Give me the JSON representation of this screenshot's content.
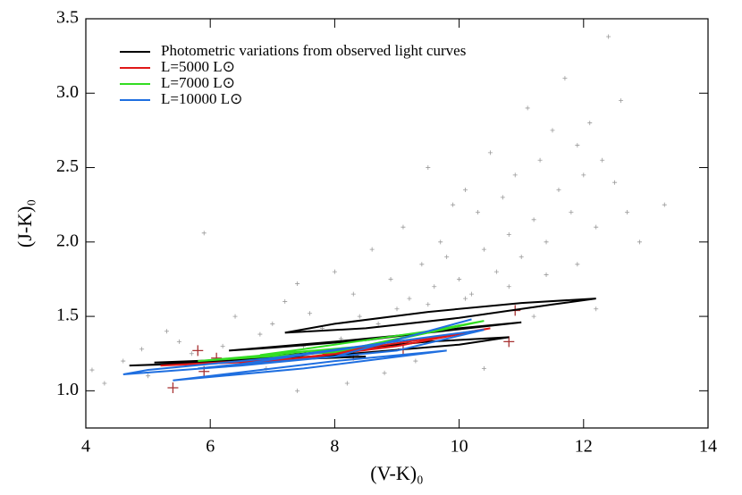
{
  "chart_data": {
    "type": "scatter-lines",
    "x_label": "(V-K)₀",
    "y_label": "(J-K)₀",
    "xlim": [
      4,
      14
    ],
    "xticks": [
      4,
      6,
      8,
      10,
      12,
      14
    ],
    "ylim": [
      0.75,
      3.5
    ],
    "yticks": [
      {
        "value": 1,
        "label": "1.0"
      },
      1.5,
      {
        "value": 2,
        "label": "2.0"
      },
      2.5,
      {
        "value": 3,
        "label": "3.0"
      },
      3.5
    ],
    "legend": "upper-left",
    "points": [
      {
        "color": "#999999",
        "x": [
          4.1,
          4.3,
          4.6,
          4.9,
          5.0,
          5.3,
          5.5,
          5.7,
          5.9,
          6.2,
          6.4,
          6.6,
          6.8,
          7.0,
          7.2,
          7.4,
          7.5,
          7.6,
          7.8,
          8.0,
          8.1,
          8.3,
          8.4,
          8.6,
          8.7,
          8.9,
          9.0,
          9.1,
          9.2,
          9.4,
          9.5,
          9.6,
          9.7,
          9.8,
          9.9,
          10.0,
          10.1,
          10.2,
          10.3,
          10.4,
          10.5,
          10.6,
          10.7,
          10.8,
          10.9,
          11.0,
          11.1,
          11.2,
          11.3,
          11.4,
          11.5,
          11.6,
          11.7,
          11.8,
          11.9,
          12.0,
          12.1,
          12.2,
          12.3,
          12.4,
          12.5,
          12.6,
          12.7,
          12.9,
          13.3,
          9.5,
          10.1,
          10.8,
          11.4,
          11.9,
          8.8,
          9.3,
          10.4,
          11.2,
          12.2,
          7.4,
          6.9,
          8.2
        ],
        "y": [
          1.14,
          1.05,
          1.2,
          1.28,
          1.1,
          1.4,
          1.33,
          1.25,
          2.06,
          1.3,
          1.5,
          1.22,
          1.38,
          1.45,
          1.6,
          1.72,
          1.3,
          1.52,
          1.42,
          1.8,
          1.35,
          1.65,
          1.5,
          1.95,
          1.45,
          1.75,
          1.55,
          2.1,
          1.62,
          1.85,
          2.5,
          1.7,
          2.0,
          1.9,
          2.25,
          1.75,
          2.35,
          1.65,
          2.2,
          1.95,
          2.6,
          1.8,
          2.3,
          2.05,
          2.45,
          1.9,
          2.9,
          2.15,
          2.55,
          2.0,
          2.75,
          2.35,
          3.1,
          2.2,
          2.65,
          2.45,
          2.8,
          2.1,
          2.55,
          3.38,
          2.4,
          2.95,
          2.2,
          2.0,
          2.25,
          1.58,
          1.62,
          1.7,
          1.78,
          1.85,
          1.12,
          1.2,
          1.15,
          1.5,
          1.55,
          1.0,
          1.15,
          1.05
        ]
      },
      {
        "color": "#a83232",
        "x": [
          5.8,
          5.4,
          5.9,
          6.1,
          9.1,
          10.9,
          10.8,
          8.3
        ],
        "y": [
          1.27,
          1.02,
          1.13,
          1.22,
          1.28,
          1.54,
          1.33,
          1.24
        ]
      }
    ],
    "series": [
      {
        "name": "Photometric variations from observed light curves",
        "color": "#000000",
        "x": [
          7.2,
          8,
          9.5,
          11,
          12.2,
          11.5,
          10,
          8.5,
          7.2,
          null,
          6.3,
          8,
          9.5,
          11,
          10,
          8.5,
          7,
          6.3,
          null,
          4.7,
          6,
          8,
          10,
          10.8,
          9.5,
          7.5,
          5.5,
          4.7,
          null,
          5.1,
          6.5,
          8.5,
          7,
          5.1
        ],
        "y": [
          1.39,
          1.45,
          1.53,
          1.59,
          1.62,
          1.58,
          1.49,
          1.42,
          1.39,
          null,
          1.27,
          1.33,
          1.39,
          1.46,
          1.42,
          1.34,
          1.29,
          1.27,
          null,
          1.17,
          1.19,
          1.24,
          1.31,
          1.36,
          1.33,
          1.25,
          1.18,
          1.17,
          null,
          1.19,
          1.2,
          1.23,
          1.22,
          1.19
        ]
      },
      {
        "name": "L=5000 L⊙",
        "color": "#e01818",
        "x": [
          7.8,
          9,
          10.5,
          9.5,
          8,
          7.8,
          null,
          5.2,
          7,
          9,
          7.5,
          5.2
        ],
        "y": [
          1.25,
          1.3,
          1.42,
          1.35,
          1.26,
          1.25,
          null,
          1.17,
          1.2,
          1.3,
          1.22,
          1.17
        ]
      },
      {
        "name": "L=7000 L⊙",
        "color": "#33dd22",
        "x": [
          6.8,
          8.5,
          10.4,
          9.5,
          7.5,
          6.8,
          null,
          5.8,
          8,
          10,
          8.5,
          5.8
        ],
        "y": [
          1.24,
          1.3,
          1.47,
          1.4,
          1.28,
          1.24,
          null,
          1.2,
          1.26,
          1.44,
          1.3,
          1.2
        ]
      },
      {
        "name": "L=10000 L⊙",
        "color": "#1f6fe0",
        "x": [
          4.6,
          6.5,
          9,
          10.4,
          9.5,
          7,
          5,
          4.6,
          null,
          5.4,
          7.5,
          9.8,
          8,
          5.4,
          null,
          5.8,
          8,
          10.2,
          8.8,
          6.5,
          5.8
        ],
        "y": [
          1.11,
          1.17,
          1.27,
          1.41,
          1.36,
          1.22,
          1.14,
          1.11,
          null,
          1.07,
          1.15,
          1.27,
          1.2,
          1.07,
          null,
          1.15,
          1.23,
          1.48,
          1.32,
          1.18,
          1.15
        ]
      }
    ]
  }
}
